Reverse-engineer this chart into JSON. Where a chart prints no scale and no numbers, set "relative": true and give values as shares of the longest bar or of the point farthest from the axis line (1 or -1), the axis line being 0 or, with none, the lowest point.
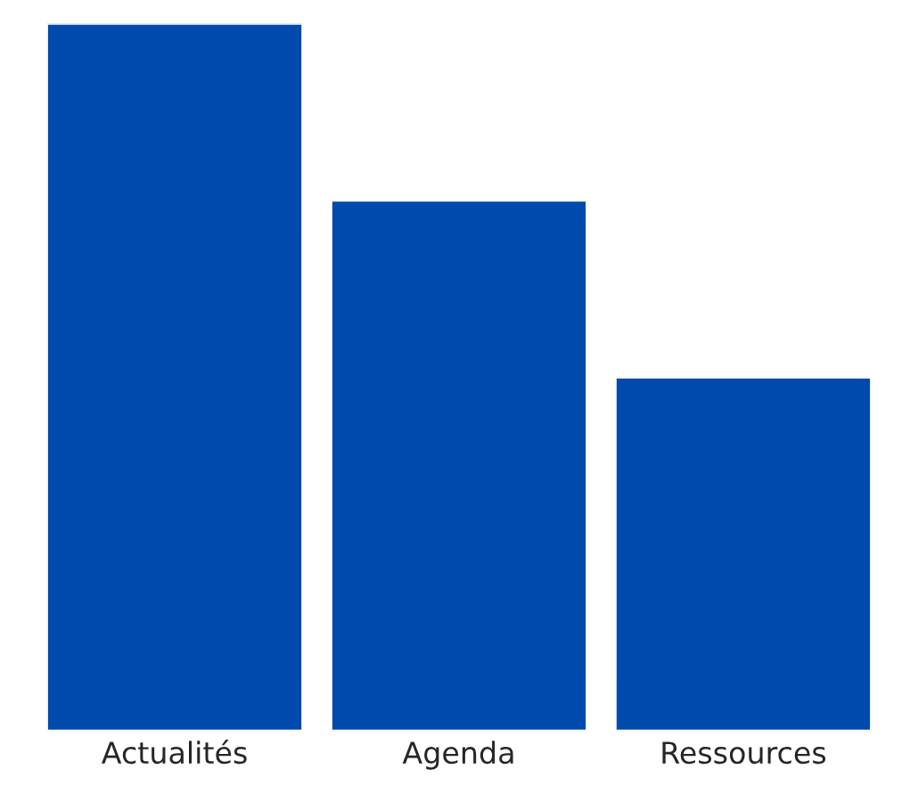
{
  "chart_data": {
    "type": "bar",
    "relative": true,
    "categories": [
      "Actualités",
      "Agenda",
      "Ressources"
    ],
    "values": [
      1,
      0.75,
      0.5
    ],
    "color": "#004aad",
    "grid": false,
    "legend": false
  }
}
